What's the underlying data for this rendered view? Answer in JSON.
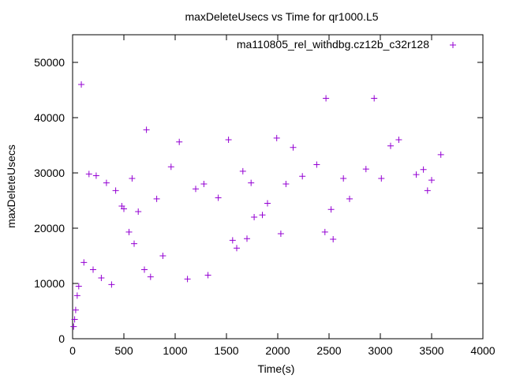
{
  "chart_data": {
    "type": "scatter",
    "title": "maxDeleteUsecs vs Time for qr1000.L5",
    "xlabel": "Time(s)",
    "ylabel": "maxDeleteUsecs",
    "xlim": [
      0,
      4000
    ],
    "ylim": [
      0,
      55000
    ],
    "x_ticks": [
      0,
      500,
      1000,
      1500,
      2000,
      2500,
      3000,
      3500,
      4000
    ],
    "y_ticks": [
      0,
      10000,
      20000,
      30000,
      40000,
      50000
    ],
    "x_tick_labels": [
      "0",
      "500",
      "1000",
      "1500",
      "2000",
      "2500",
      "3000",
      "3500",
      "4000"
    ],
    "y_tick_labels": [
      "0",
      "10000",
      "20000",
      "30000",
      "40000",
      "50000"
    ],
    "grid": false,
    "legend_position": "top-right",
    "marker": "+",
    "series": [
      {
        "name": "ma110805_rel_withdbg.cz12b_c32r128",
        "color": "#9400d3",
        "points": [
          [
            10,
            2200
          ],
          [
            20,
            3500
          ],
          [
            30,
            5200
          ],
          [
            45,
            7800
          ],
          [
            60,
            9500
          ],
          [
            85,
            46000
          ],
          [
            110,
            13800
          ],
          [
            160,
            29800
          ],
          [
            200,
            12500
          ],
          [
            230,
            29500
          ],
          [
            280,
            11000
          ],
          [
            330,
            28200
          ],
          [
            380,
            9800
          ],
          [
            420,
            26800
          ],
          [
            480,
            24000
          ],
          [
            500,
            23500
          ],
          [
            550,
            19300
          ],
          [
            580,
            29000
          ],
          [
            600,
            17200
          ],
          [
            640,
            23000
          ],
          [
            700,
            12500
          ],
          [
            720,
            37800
          ],
          [
            760,
            11200
          ],
          [
            820,
            25300
          ],
          [
            880,
            15000
          ],
          [
            960,
            31100
          ],
          [
            1040,
            35600
          ],
          [
            1120,
            10800
          ],
          [
            1200,
            27100
          ],
          [
            1280,
            28000
          ],
          [
            1320,
            11500
          ],
          [
            1420,
            25500
          ],
          [
            1520,
            36000
          ],
          [
            1560,
            17800
          ],
          [
            1600,
            16400
          ],
          [
            1660,
            30300
          ],
          [
            1700,
            18100
          ],
          [
            1740,
            28200
          ],
          [
            1770,
            22000
          ],
          [
            1850,
            22400
          ],
          [
            1900,
            24500
          ],
          [
            1990,
            36300
          ],
          [
            2030,
            19000
          ],
          [
            2080,
            28000
          ],
          [
            2150,
            34600
          ],
          [
            2240,
            29400
          ],
          [
            2380,
            31500
          ],
          [
            2460,
            19300
          ],
          [
            2470,
            43500
          ],
          [
            2520,
            23400
          ],
          [
            2540,
            18000
          ],
          [
            2640,
            29000
          ],
          [
            2700,
            25300
          ],
          [
            2860,
            30700
          ],
          [
            2940,
            43500
          ],
          [
            3010,
            29000
          ],
          [
            3100,
            34900
          ],
          [
            3180,
            36000
          ],
          [
            3350,
            29700
          ],
          [
            3420,
            30600
          ],
          [
            3460,
            26800
          ],
          [
            3500,
            28700
          ],
          [
            3590,
            33300
          ]
        ]
      }
    ]
  }
}
